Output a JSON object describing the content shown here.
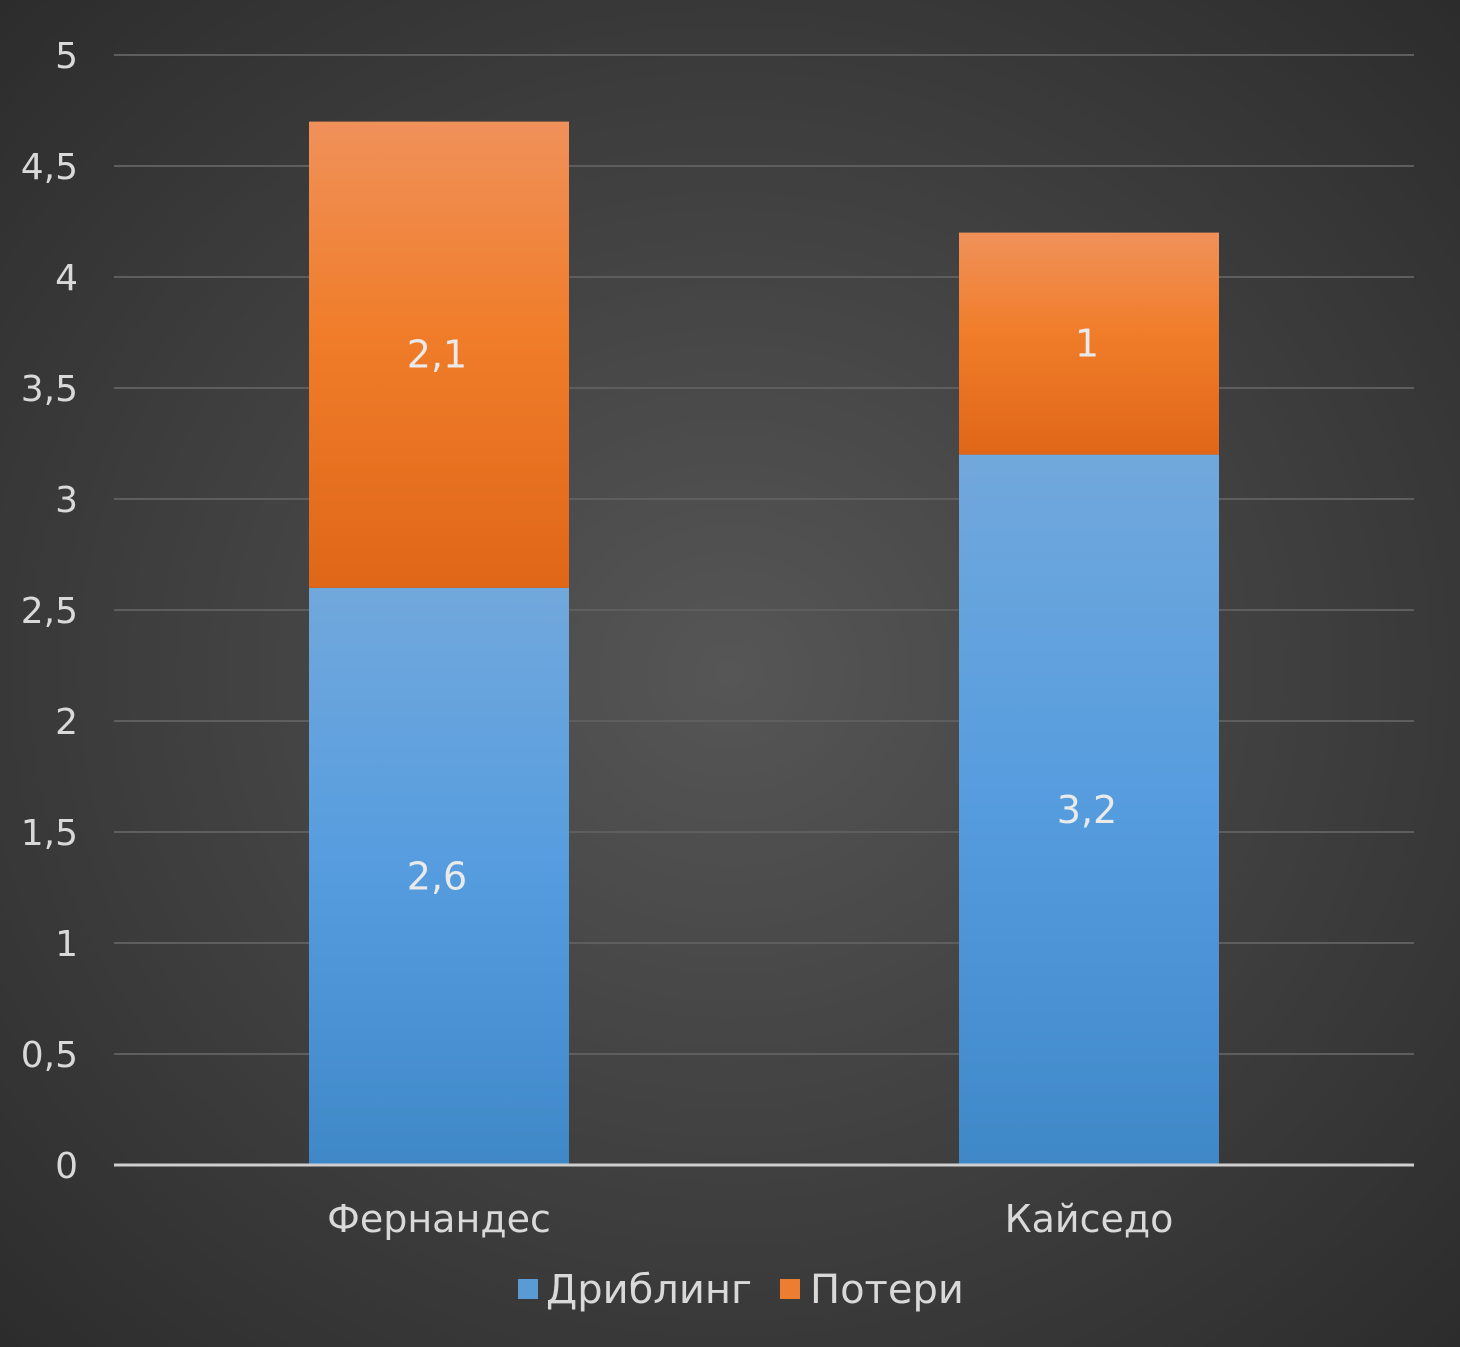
{
  "chart_data": {
    "type": "bar",
    "stacked": true,
    "categories": [
      "Фернандес",
      "Кайседо"
    ],
    "series": [
      {
        "name": "Дриблинг",
        "values": [
          2.6,
          3.2
        ],
        "color": "#5b9bd5"
      },
      {
        "name": "Потери",
        "values": [
          2.1,
          1
        ],
        "color": "#ed7d31"
      }
    ],
    "data_labels": [
      [
        "2,6",
        "3,2"
      ],
      [
        "2,1",
        "1"
      ]
    ],
    "ylim": [
      0,
      5
    ],
    "yticks": [
      0,
      0.5,
      1,
      1.5,
      2,
      2.5,
      3,
      3.5,
      4,
      4.5,
      5
    ],
    "ytick_labels": [
      "0",
      "0,5",
      "1",
      "1,5",
      "2",
      "2,5",
      "3",
      "3,5",
      "4",
      "4,5",
      "5"
    ],
    "grid": true,
    "legend_position": "bottom",
    "background": "#404040"
  }
}
